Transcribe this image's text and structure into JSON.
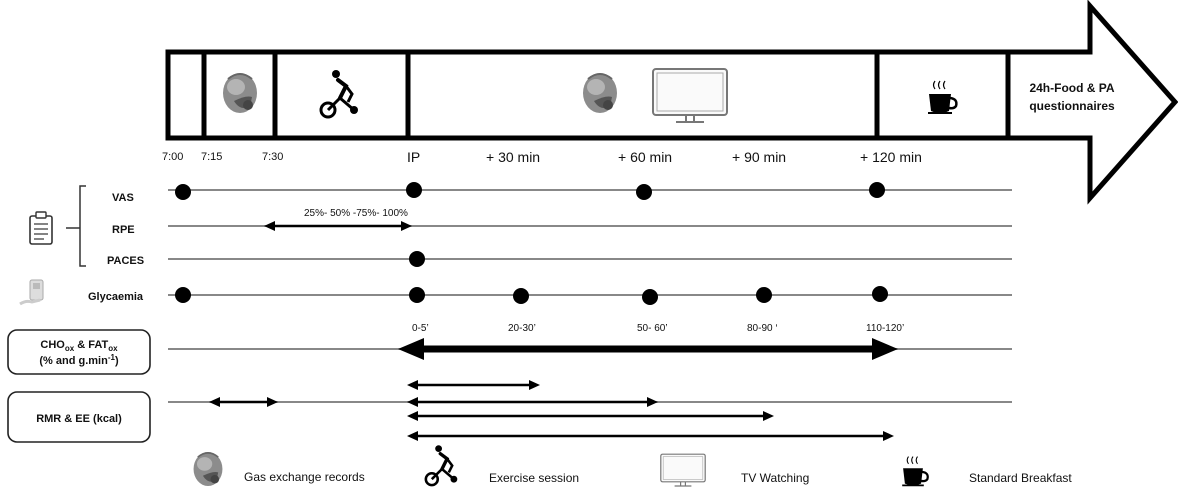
{
  "arrow": {
    "end_label_line1": "24h-Food & PA",
    "end_label_line2": "questionnaires"
  },
  "time_labels": {
    "t700": "7:00",
    "t715": "7:15",
    "t730": "7:30",
    "ip": "IP",
    "p30": "+ 30 min",
    "p60": "+ 60 min",
    "p90": "+ 90 min",
    "p120": "+ 120 min"
  },
  "rows": {
    "vas": "VAS",
    "rpe": "RPE",
    "paces": "PACES",
    "glycaemia": "Glycaemia",
    "rpe_scale": "25%- 50% -75%- 100%"
  },
  "cho_box": {
    "cho": "CHO",
    "cho_sub": "ox",
    "amp": " & FAT",
    "fat_sub": "ox",
    "line2_a": "(% and g.min",
    "line2_sup": "-1",
    "line2_b": ")"
  },
  "cho_windows": [
    "0-5’",
    "20-30’",
    "50- 60’",
    "80-90 ‘",
    "110-120’"
  ],
  "rmr_box": {
    "label": "RMR & EE (kcal)"
  },
  "legend": {
    "gas": "Gas exchange records",
    "exercise": "Exercise session",
    "tv": "TV Watching",
    "breakfast": "Standard Breakfast"
  },
  "icons": [
    "head-mask-icon",
    "exercise-bike-icon",
    "tv-monitor-icon",
    "coffee-cup-icon",
    "clipboard-icon",
    "glucometer-icon"
  ]
}
